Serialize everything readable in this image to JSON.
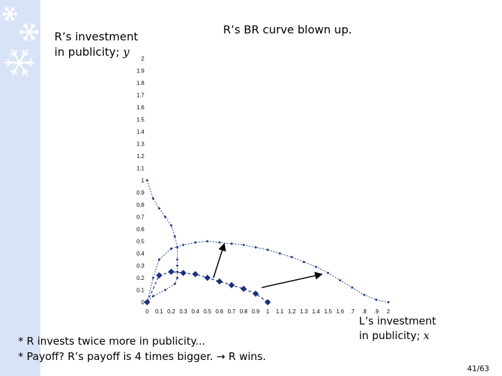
{
  "slide": {
    "title": "R’s BR curve blown up.",
    "y_label_line1": "R’s investment",
    "y_label_line2_text": "in publicity; ",
    "y_label_line2_var": "y",
    "x_label_line1": "L’s investment",
    "x_label_line2_text": "in publicity; ",
    "x_label_line2_var": "x",
    "note1": "* R invests twice more in publicity...",
    "note2_prefix": "* Payoff? R’s payoff is 4 times bigger. ",
    "note2_arrow": "→",
    "note2_suffix": " R wins.",
    "page_number": "41/63",
    "band_color": "#d9e3f8"
  },
  "chart_data": {
    "type": "scatter",
    "x_ticks": [
      "0",
      "0.1",
      "0.2",
      "0.3",
      "0.4",
      "0.5",
      "0.6",
      "0.7",
      "0.8",
      "0.9",
      "1",
      "1.1",
      "1.2",
      "1.3",
      "1.4",
      "1.5",
      "1.6",
      ".7",
      ".8",
      ".9",
      "2"
    ],
    "y_ticks": [
      "0",
      "0.1",
      "0.2",
      "0.3",
      "0.4",
      "0.5",
      "0.6",
      "0.7",
      "0.8",
      "0.9",
      "1",
      "1.1",
      "1.2",
      "1.3",
      "1.4",
      "1.5",
      "1.6",
      "1.7",
      "1.8",
      "1.9",
      "2"
    ],
    "xlim": [
      0,
      2
    ],
    "ylim": [
      0,
      2
    ],
    "series": [
      {
        "style": "small-markers",
        "color": "#1f3a8a",
        "points": [
          [
            0,
            1
          ],
          [
            0.05,
            0.85
          ],
          [
            0.1,
            0.77
          ],
          [
            0.15,
            0.7
          ],
          [
            0.2,
            0.63
          ],
          [
            0.23,
            0.54
          ],
          [
            0.25,
            0.45
          ],
          [
            0.25,
            0.35
          ],
          [
            0.25,
            0.3
          ],
          [
            0.25,
            0.25
          ],
          [
            0.25,
            0.2
          ],
          [
            0.23,
            0.15
          ],
          [
            0.15,
            0.1
          ],
          [
            0.05,
            0.05
          ],
          [
            0,
            0
          ]
        ]
      },
      {
        "style": "small-markers",
        "color": "#1f3a8a",
        "points": [
          [
            0,
            0
          ],
          [
            0.05,
            0.2
          ],
          [
            0.1,
            0.35
          ],
          [
            0.2,
            0.44
          ],
          [
            0.3,
            0.47
          ],
          [
            0.4,
            0.49
          ],
          [
            0.5,
            0.5
          ],
          [
            0.6,
            0.49
          ],
          [
            0.7,
            0.48
          ],
          [
            0.8,
            0.47
          ],
          [
            0.9,
            0.45
          ],
          [
            1,
            0.43
          ],
          [
            1.1,
            0.4
          ],
          [
            1.2,
            0.37
          ],
          [
            1.3,
            0.33
          ],
          [
            1.4,
            0.29
          ],
          [
            1.5,
            0.24
          ],
          [
            1.6,
            0.18
          ],
          [
            1.7,
            0.12
          ],
          [
            1.8,
            0.06
          ],
          [
            1.9,
            0.02
          ],
          [
            2,
            0
          ]
        ]
      },
      {
        "style": "large-diamonds",
        "color": "#1f3a8a",
        "points": [
          [
            0,
            0
          ],
          [
            0.1,
            0.22
          ],
          [
            0.2,
            0.25
          ],
          [
            0.3,
            0.24
          ],
          [
            0.4,
            0.23
          ],
          [
            0.5,
            0.2
          ],
          [
            0.6,
            0.17
          ],
          [
            0.7,
            0.14
          ],
          [
            0.8,
            0.11
          ],
          [
            0.9,
            0.07
          ],
          [
            1,
            0
          ]
        ]
      }
    ],
    "annotations": [
      {
        "type": "arrow",
        "from": [
          0.55,
          0.2
        ],
        "to": [
          0.64,
          0.48
        ]
      },
      {
        "type": "arrow",
        "from": [
          0.95,
          0.12
        ],
        "to": [
          1.45,
          0.23
        ]
      }
    ]
  }
}
